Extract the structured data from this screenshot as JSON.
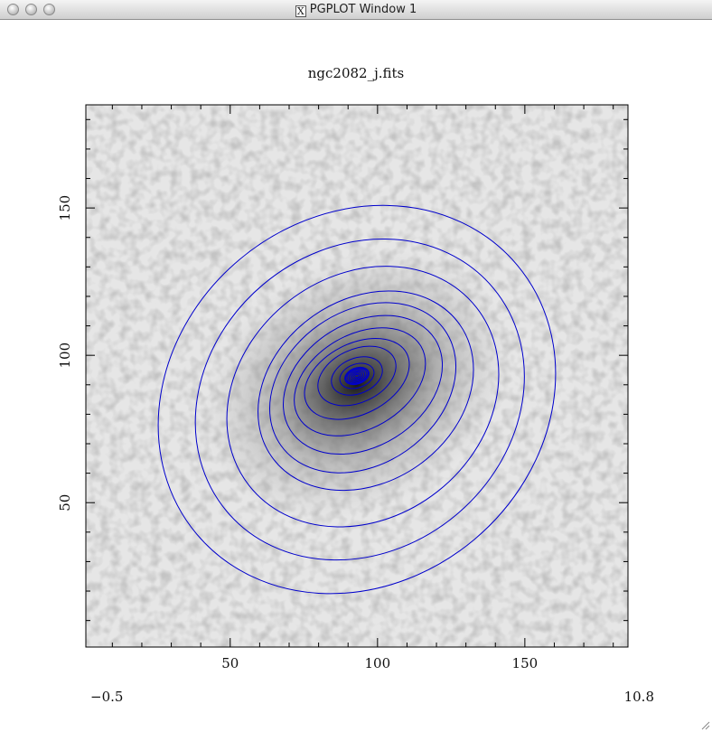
{
  "window": {
    "title": "PGPLOT Window 1",
    "buttons": [
      "close-button",
      "minimize-button",
      "zoom-button"
    ]
  },
  "plot": {
    "title": "ngc2082_j.fits",
    "x_ticks": [
      "50",
      "100",
      "150"
    ],
    "x_tick_values": [
      50,
      100,
      150
    ],
    "y_ticks": [
      "50",
      "100",
      "150"
    ],
    "y_tick_values": [
      50,
      100,
      150
    ],
    "axis_range": {
      "x": [
        1,
        185
      ],
      "y": [
        1,
        185
      ]
    },
    "colorbar_min": "−0.5",
    "colorbar_max": "10.8",
    "contour_color": "#0000cc",
    "background_colormap": "greyscale"
  },
  "chart_data": {
    "type": "heatmap",
    "title": "ngc2082_j.fits",
    "xlim": [
      1,
      185
    ],
    "ylim": [
      1,
      185
    ],
    "x_ticks": [
      50,
      100,
      150
    ],
    "y_ticks": [
      50,
      100,
      150
    ],
    "value_range": [
      -0.5,
      10.8
    ],
    "contours": [
      {
        "cx": 93,
        "cy": 93,
        "rx": 4,
        "ry": 2.5,
        "angle_deg": 20
      },
      {
        "cx": 93,
        "cy": 93,
        "rx": 6,
        "ry": 4,
        "angle_deg": 20
      },
      {
        "cx": 93,
        "cy": 93,
        "rx": 9,
        "ry": 6,
        "angle_deg": 22
      },
      {
        "cx": 93,
        "cy": 93,
        "rx": 14,
        "ry": 9,
        "angle_deg": 25
      },
      {
        "cx": 93,
        "cy": 92,
        "rx": 19,
        "ry": 12,
        "angle_deg": 27
      },
      {
        "cx": 94,
        "cy": 91,
        "rx": 24,
        "ry": 16,
        "angle_deg": 30
      },
      {
        "cx": 95,
        "cy": 90,
        "rx": 29,
        "ry": 21,
        "angle_deg": 32
      },
      {
        "cx": 95,
        "cy": 89,
        "rx": 34,
        "ry": 26,
        "angle_deg": 35
      },
      {
        "cx": 96,
        "cy": 88,
        "rx": 39,
        "ry": 31,
        "angle_deg": 35
      },
      {
        "cx": 95,
        "cy": 86,
        "rx": 49,
        "ry": 41,
        "angle_deg": 38
      },
      {
        "cx": 94,
        "cy": 85,
        "rx": 59,
        "ry": 51,
        "angle_deg": 40
      },
      {
        "cx": 93,
        "cy": 85,
        "rx": 71,
        "ry": 62,
        "angle_deg": 40
      }
    ]
  }
}
